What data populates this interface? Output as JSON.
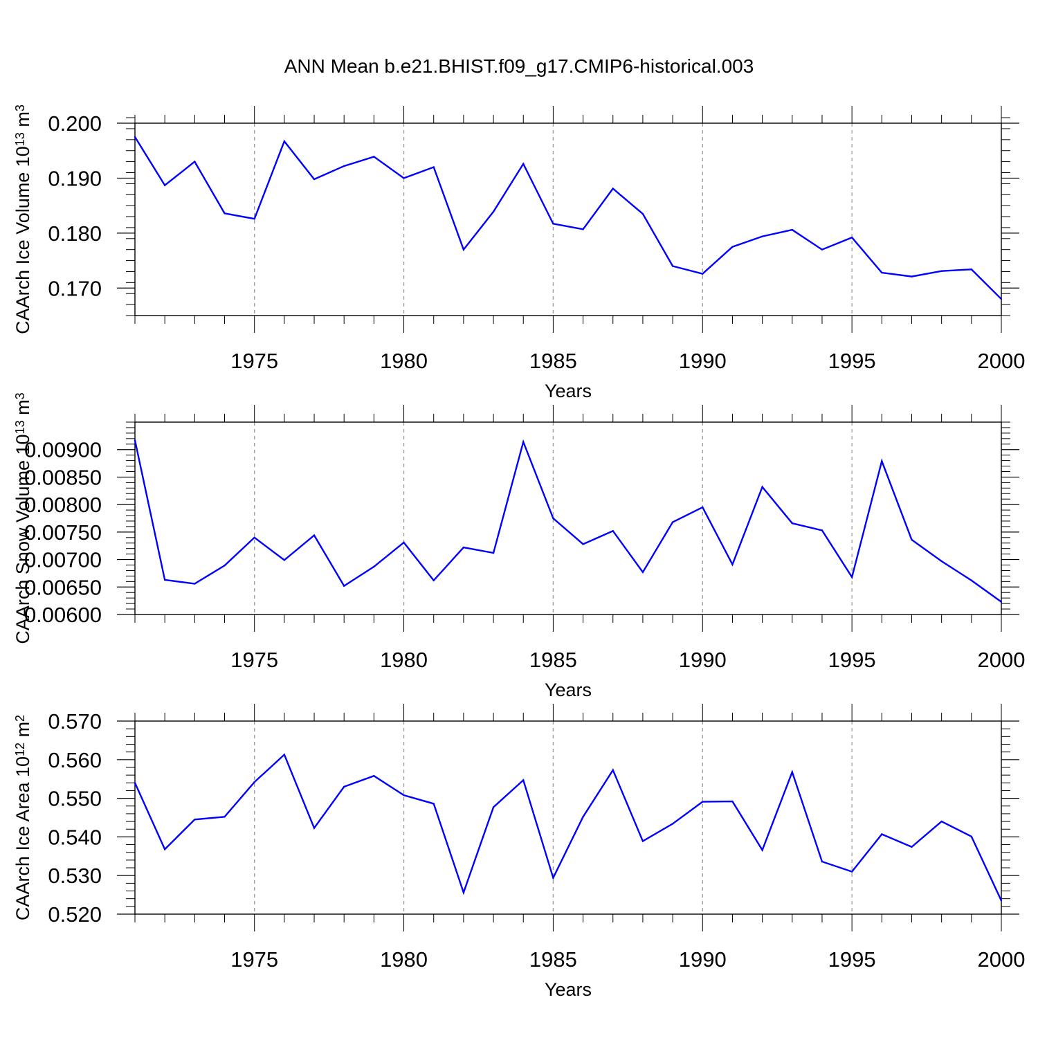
{
  "title": "ANN Mean b.e21.BHIST.f09_g17.CMIP6-historical.003",
  "line_color": "#0000ff",
  "chart_data": [
    {
      "type": "line",
      "title": "ANN Mean b.e21.BHIST.f09_g17.CMIP6-historical.003",
      "xlabel": "Years",
      "ylabel": "CAArch Ice Volume 10",
      "ylabel_exp": "13",
      "ylabel_unit": " m",
      "ylabel_unit_exp": "3",
      "xlim": [
        1971,
        2000
      ],
      "ylim": [
        0.165,
        0.2
      ],
      "yticks": [
        0.17,
        0.18,
        0.19,
        0.2
      ],
      "ytick_labels": [
        "0.170",
        "0.180",
        "0.190",
        "0.200"
      ],
      "yminor_step": 0.002,
      "xticks": [
        1975,
        1980,
        1985,
        1990,
        1995,
        2000
      ],
      "xtick_labels": [
        "1975",
        "1980",
        "1985",
        "1990",
        "1995",
        "2000"
      ],
      "grid": "vertical dashed",
      "x": [
        1971,
        1972,
        1973,
        1974,
        1975,
        1976,
        1977,
        1978,
        1979,
        1980,
        1981,
        1982,
        1983,
        1984,
        1985,
        1986,
        1987,
        1988,
        1989,
        1990,
        1991,
        1992,
        1993,
        1994,
        1995,
        1996,
        1997,
        1998,
        1999,
        2000
      ],
      "values": [
        0.1975,
        0.1887,
        0.193,
        0.1836,
        0.1826,
        0.1967,
        0.1898,
        0.1922,
        0.1939,
        0.19,
        0.192,
        0.177,
        0.1839,
        0.1926,
        0.1817,
        0.1807,
        0.1881,
        0.1835,
        0.174,
        0.1726,
        0.1775,
        0.1794,
        0.1806,
        0.177,
        0.1792,
        0.1728,
        0.1721,
        0.1731,
        0.1734,
        0.168
      ]
    },
    {
      "type": "line",
      "xlabel": "Years",
      "ylabel": "CAArch Snow Volume 10",
      "ylabel_exp": "13",
      "ylabel_unit": " m",
      "ylabel_unit_exp": "3",
      "xlim": [
        1971,
        2000
      ],
      "ylim": [
        0.006,
        0.0095
      ],
      "yticks": [
        0.006,
        0.0065,
        0.007,
        0.0075,
        0.008,
        0.0085,
        0.009
      ],
      "ytick_labels": [
        "0.00600",
        "0.00650",
        "0.00700",
        "0.00750",
        "0.00800",
        "0.00850",
        "0.00900"
      ],
      "yminor_step": 0.0001,
      "xticks": [
        1975,
        1980,
        1985,
        1990,
        1995,
        2000
      ],
      "xtick_labels": [
        "1975",
        "1980",
        "1985",
        "1990",
        "1995",
        "2000"
      ],
      "grid": "vertical dashed",
      "x": [
        1971,
        1972,
        1973,
        1974,
        1975,
        1976,
        1977,
        1978,
        1979,
        1980,
        1981,
        1982,
        1983,
        1984,
        1985,
        1986,
        1987,
        1988,
        1989,
        1990,
        1991,
        1992,
        1993,
        1994,
        1995,
        1996,
        1997,
        1998,
        1999,
        2000
      ],
      "values": [
        0.00917,
        0.00663,
        0.00656,
        0.00689,
        0.0074,
        0.00699,
        0.00744,
        0.00652,
        0.00687,
        0.00731,
        0.00662,
        0.00722,
        0.00712,
        0.00914,
        0.00775,
        0.00728,
        0.00752,
        0.00677,
        0.00768,
        0.00795,
        0.00691,
        0.00832,
        0.00766,
        0.00753,
        0.00668,
        0.00879,
        0.00736,
        0.00697,
        0.00662,
        0.00623
      ]
    },
    {
      "type": "line",
      "xlabel": "Years",
      "ylabel": "CAArch Ice Area 10",
      "ylabel_exp": "12",
      "ylabel_unit": " m",
      "ylabel_unit_exp": "2",
      "xlim": [
        1971,
        2000
      ],
      "ylim": [
        0.52,
        0.57
      ],
      "yticks": [
        0.52,
        0.53,
        0.54,
        0.55,
        0.56,
        0.57
      ],
      "ytick_labels": [
        "0.520",
        "0.530",
        "0.540",
        "0.550",
        "0.560",
        "0.570"
      ],
      "yminor_step": 0.002,
      "xticks": [
        1975,
        1980,
        1985,
        1990,
        1995,
        2000
      ],
      "xtick_labels": [
        "1975",
        "1980",
        "1985",
        "1990",
        "1995",
        "2000"
      ],
      "grid": "vertical dashed",
      "x": [
        1971,
        1972,
        1973,
        1974,
        1975,
        1976,
        1977,
        1978,
        1979,
        1980,
        1981,
        1982,
        1983,
        1984,
        1985,
        1986,
        1987,
        1988,
        1989,
        1990,
        1991,
        1992,
        1993,
        1994,
        1995,
        1996,
        1997,
        1998,
        1999,
        2000
      ],
      "values": [
        0.554,
        0.5368,
        0.5445,
        0.5452,
        0.5542,
        0.5613,
        0.5423,
        0.553,
        0.5558,
        0.5508,
        0.5486,
        0.5256,
        0.5477,
        0.5547,
        0.5294,
        0.5452,
        0.5573,
        0.5389,
        0.5434,
        0.5491,
        0.5492,
        0.5366,
        0.5568,
        0.5336,
        0.531,
        0.5407,
        0.5374,
        0.544,
        0.5401,
        0.5235
      ]
    }
  ]
}
